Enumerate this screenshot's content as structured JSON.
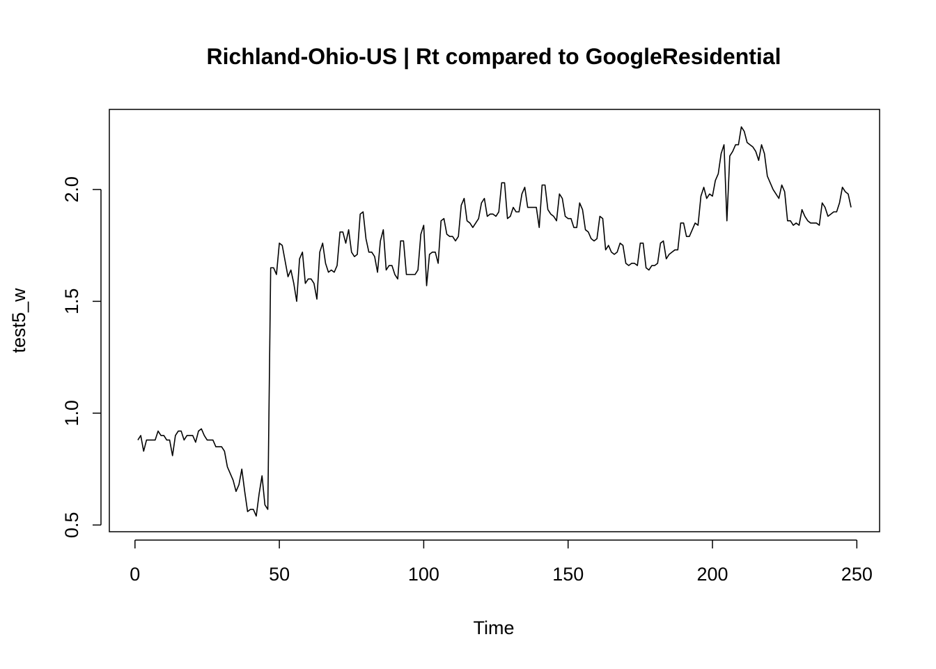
{
  "chart_data": {
    "type": "line",
    "title": "Richland-Ohio-US | Rt compared to GoogleResidential",
    "x_label": "Time",
    "y_label": "test5_w",
    "color": "#000000",
    "xlim": [
      -8.88,
      257.88
    ],
    "ylim": [
      0.47,
      2.358
    ],
    "xticks": [
      0,
      50,
      100,
      150,
      200,
      250
    ],
    "yticks": [
      0.5,
      {
        "value": 1,
        "label": "1.0"
      },
      1.5,
      {
        "value": 2,
        "label": "2.0"
      }
    ],
    "x": [
      1,
      2,
      3,
      4,
      5,
      6,
      7,
      8,
      9,
      10,
      11,
      12,
      13,
      14,
      15,
      16,
      17,
      18,
      19,
      20,
      21,
      22,
      23,
      24,
      25,
      26,
      27,
      28,
      29,
      30,
      31,
      32,
      33,
      34,
      35,
      36,
      37,
      38,
      39,
      40,
      41,
      42,
      43,
      44,
      45,
      46,
      47,
      48,
      49,
      50,
      51,
      52,
      53,
      54,
      55,
      56,
      57,
      58,
      59,
      60,
      61,
      62,
      63,
      64,
      65,
      66,
      67,
      68,
      69,
      70,
      71,
      72,
      73,
      74,
      75,
      76,
      77,
      78,
      79,
      80,
      81,
      82,
      83,
      84,
      85,
      86,
      87,
      88,
      89,
      90,
      91,
      92,
      93,
      94,
      95,
      96,
      97,
      98,
      99,
      100,
      101,
      102,
      103,
      104,
      105,
      106,
      107,
      108,
      109,
      110,
      111,
      112,
      113,
      114,
      115,
      116,
      117,
      118,
      119,
      120,
      121,
      122,
      123,
      124,
      125,
      126,
      127,
      128,
      129,
      130,
      131,
      132,
      133,
      134,
      135,
      136,
      137,
      138,
      139,
      140,
      141,
      142,
      143,
      144,
      145,
      146,
      147,
      148,
      149,
      150,
      151,
      152,
      153,
      154,
      155,
      156,
      157,
      158,
      159,
      160,
      161,
      162,
      163,
      164,
      165,
      166,
      167,
      168,
      169,
      170,
      171,
      172,
      173,
      174,
      175,
      176,
      177,
      178,
      179,
      180,
      181,
      182,
      183,
      184,
      185,
      186,
      187,
      188,
      189,
      190,
      191,
      192,
      193,
      194,
      195,
      196,
      197,
      198,
      199,
      200,
      201,
      202,
      203,
      204,
      205,
      206,
      207,
      208,
      209,
      210,
      211,
      212,
      213,
      214,
      215,
      216,
      217,
      218,
      219,
      220,
      221,
      222,
      223,
      224,
      225,
      226,
      227,
      228,
      229,
      230,
      231,
      232,
      233,
      234,
      235,
      236,
      237,
      238,
      239,
      240,
      241,
      242,
      243,
      244,
      245,
      246,
      247,
      248
    ],
    "values": [
      0.88,
      0.9,
      0.83,
      0.88,
      0.88,
      0.88,
      0.88,
      0.92,
      0.9,
      0.9,
      0.88,
      0.88,
      0.81,
      0.9,
      0.92,
      0.92,
      0.88,
      0.9,
      0.9,
      0.9,
      0.87,
      0.92,
      0.93,
      0.9,
      0.88,
      0.88,
      0.88,
      0.85,
      0.85,
      0.85,
      0.83,
      0.76,
      0.73,
      0.7,
      0.65,
      0.68,
      0.75,
      0.65,
      0.56,
      0.57,
      0.57,
      0.54,
      0.64,
      0.72,
      0.59,
      0.57,
      1.65,
      1.65,
      1.62,
      1.76,
      1.75,
      1.68,
      1.61,
      1.64,
      1.58,
      1.5,
      1.69,
      1.72,
      1.58,
      1.6,
      1.6,
      1.58,
      1.51,
      1.72,
      1.76,
      1.67,
      1.63,
      1.64,
      1.63,
      1.66,
      1.81,
      1.81,
      1.76,
      1.82,
      1.72,
      1.7,
      1.71,
      1.89,
      1.9,
      1.78,
      1.72,
      1.72,
      1.7,
      1.63,
      1.77,
      1.82,
      1.64,
      1.66,
      1.66,
      1.62,
      1.6,
      1.77,
      1.77,
      1.62,
      1.62,
      1.62,
      1.62,
      1.64,
      1.8,
      1.84,
      1.57,
      1.71,
      1.72,
      1.72,
      1.67,
      1.86,
      1.87,
      1.8,
      1.79,
      1.79,
      1.77,
      1.79,
      1.93,
      1.96,
      1.86,
      1.85,
      1.83,
      1.85,
      1.87,
      1.94,
      1.96,
      1.88,
      1.89,
      1.89,
      1.88,
      1.9,
      2.03,
      2.03,
      1.87,
      1.88,
      1.92,
      1.9,
      1.9,
      1.98,
      2.01,
      1.92,
      1.92,
      1.92,
      1.92,
      1.83,
      2.02,
      2.02,
      1.91,
      1.89,
      1.88,
      1.86,
      1.98,
      1.96,
      1.88,
      1.87,
      1.87,
      1.83,
      1.83,
      1.94,
      1.91,
      1.82,
      1.81,
      1.78,
      1.77,
      1.78,
      1.88,
      1.87,
      1.73,
      1.75,
      1.72,
      1.71,
      1.72,
      1.76,
      1.75,
      1.67,
      1.66,
      1.67,
      1.67,
      1.66,
      1.76,
      1.76,
      1.65,
      1.64,
      1.66,
      1.66,
      1.67,
      1.76,
      1.77,
      1.69,
      1.71,
      1.72,
      1.73,
      1.73,
      1.85,
      1.85,
      1.79,
      1.79,
      1.82,
      1.85,
      1.84,
      1.97,
      2.01,
      1.96,
      1.98,
      1.97,
      2.04,
      2.07,
      2.16,
      2.2,
      1.86,
      2.15,
      2.17,
      2.2,
      2.2,
      2.28,
      2.26,
      2.21,
      2.2,
      2.19,
      2.17,
      2.13,
      2.2,
      2.16,
      2.06,
      2.03,
      2.0,
      1.98,
      1.96,
      2.02,
      1.99,
      1.86,
      1.86,
      1.84,
      1.85,
      1.84,
      1.91,
      1.88,
      1.86,
      1.85,
      1.85,
      1.85,
      1.84,
      1.94,
      1.92,
      1.88,
      1.89,
      1.9,
      1.9,
      1.94,
      2.01,
      1.99,
      1.98,
      1.92
    ]
  }
}
